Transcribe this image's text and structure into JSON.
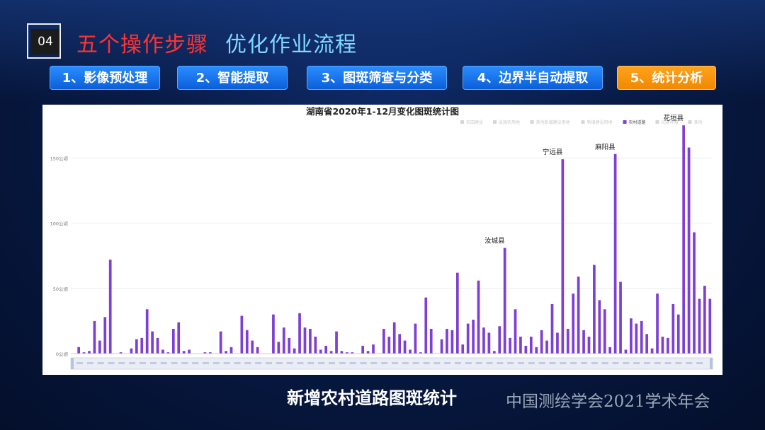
{
  "slide": {
    "number": "04",
    "title_red": "五个操作步骤",
    "title_cyan": "优化作业流程",
    "footer_title": "新增农村道路图斑统计",
    "footer_org": "中国测绘学会2021学术年会"
  },
  "steps": [
    {
      "label": "1、影像预处理",
      "active": false
    },
    {
      "label": "2、智能提取",
      "active": false
    },
    {
      "label": "3、图斑筛查与分类",
      "active": false
    },
    {
      "label": "4、边界半自动提取",
      "active": false
    },
    {
      "label": "5、统计分析",
      "active": true
    }
  ],
  "colors": {
    "bar": "#7e3fd4",
    "active_step": "#f59400",
    "step": "#1570e8"
  },
  "chart_data": {
    "type": "bar",
    "title": "湖南省2020年1-12月变化图斑统计图",
    "legend": [
      "农田建设",
      "设施农用地",
      "其他新增建设用地",
      "新增建设用地",
      "农村道路",
      "坑塘养殖",
      "其他"
    ],
    "legend_active": "农村道路",
    "legend_position": "top-right",
    "ylim": [
      0,
      180
    ],
    "yticks": [
      0,
      50,
      100,
      150
    ],
    "ytick_labels": [
      "0公顷",
      "50公顷",
      "100公顷",
      "150公顷"
    ],
    "series": [
      {
        "name": "农村道路",
        "values": [
          0,
          5,
          1,
          2,
          25,
          10,
          28,
          72,
          0,
          1,
          0,
          4,
          11,
          12,
          34,
          17,
          12,
          3,
          1,
          19,
          24,
          2,
          3,
          0,
          0,
          1,
          1,
          0,
          17,
          2,
          5,
          0,
          29,
          18,
          10,
          5,
          0,
          0,
          30,
          9,
          20,
          12,
          4,
          31,
          20,
          19,
          13,
          3,
          6,
          2,
          17,
          2,
          1,
          1,
          0,
          6,
          2,
          7,
          0,
          19,
          13,
          24,
          15,
          10,
          3,
          23,
          1,
          43,
          19,
          0,
          11,
          19,
          18,
          62,
          7,
          23,
          26,
          56,
          20,
          16,
          2,
          21,
          81,
          12,
          34,
          13,
          6,
          13,
          5,
          18,
          10,
          38,
          16,
          149,
          19,
          46,
          59,
          18,
          13,
          68,
          41,
          34,
          5,
          153,
          55,
          3,
          27,
          23,
          25,
          15,
          4,
          46,
          13,
          12,
          38,
          30,
          175,
          158,
          93,
          42,
          52,
          42
        ]
      }
    ],
    "annotations": [
      {
        "label": "汝城县",
        "index": 82
      },
      {
        "label": "宁远县",
        "index": 93
      },
      {
        "label": "麻阳县",
        "index": 103
      },
      {
        "label": "花垣县",
        "index": 116
      }
    ]
  }
}
